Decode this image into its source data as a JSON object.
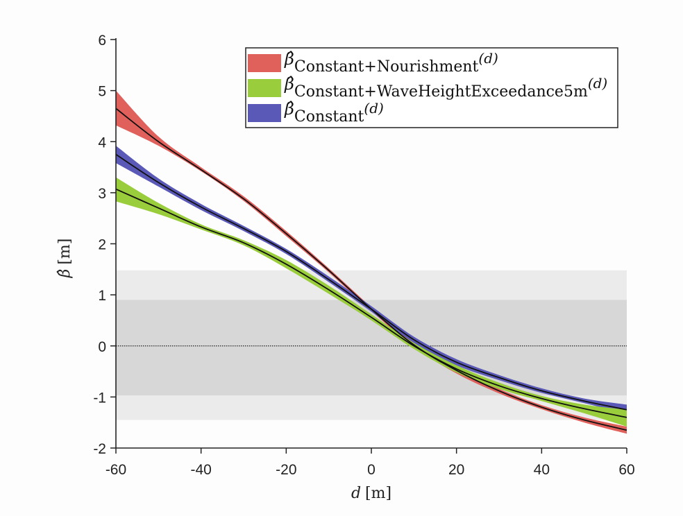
{
  "chart_data": {
    "type": "line",
    "title": "",
    "xlabel": "d [m]",
    "ylabel": "β̂ [m]",
    "xlim": [
      -60,
      60
    ],
    "ylim": [
      -2,
      6
    ],
    "xticks": [
      -60,
      -40,
      -20,
      0,
      20,
      40,
      60
    ],
    "yticks": [
      -2,
      -1,
      0,
      1,
      2,
      3,
      4,
      5,
      6
    ],
    "x": [
      -60,
      -50,
      -40,
      -30,
      -20,
      -10,
      0,
      10,
      20,
      30,
      40,
      50,
      60
    ],
    "bands": [
      {
        "name": "outer-band",
        "y0": -1.45,
        "y1": 1.48,
        "color": "#ebebeb"
      },
      {
        "name": "inner-band",
        "y0": -0.97,
        "y1": 0.9,
        "color": "#d8d7d8"
      }
    ],
    "zero_line": {
      "y": 0,
      "style": "dotted",
      "color": "#222222"
    },
    "series": [
      {
        "name": "Constant+Nourishment",
        "legend_sub": "Constant+Nourishment",
        "color": "#e0605c",
        "values": [
          4.65,
          4.0,
          3.45,
          2.88,
          2.2,
          1.48,
          0.72,
          0.02,
          -0.48,
          -0.88,
          -1.2,
          -1.45,
          -1.65
        ],
        "lower": [
          4.32,
          3.92,
          3.42,
          2.84,
          2.15,
          1.44,
          0.68,
          -0.02,
          -0.54,
          -0.93,
          -1.24,
          -1.5,
          -1.72
        ],
        "upper": [
          5.0,
          4.1,
          3.5,
          2.93,
          2.25,
          1.52,
          0.76,
          0.06,
          -0.43,
          -0.84,
          -1.16,
          -1.4,
          -1.58
        ]
      },
      {
        "name": "Constant+WaveHeightExceedance5m",
        "legend_sub": "Constant+WaveHeightExceedance5m",
        "color": "#9acd3c",
        "values": [
          3.07,
          2.7,
          2.33,
          2.02,
          1.6,
          1.1,
          0.56,
          0.0,
          -0.45,
          -0.78,
          -1.03,
          -1.23,
          -1.4
        ],
        "lower": [
          2.83,
          2.58,
          2.28,
          1.97,
          1.52,
          1.02,
          0.5,
          -0.06,
          -0.52,
          -0.84,
          -1.08,
          -1.32,
          -1.58
        ],
        "upper": [
          3.3,
          2.8,
          2.38,
          2.07,
          1.68,
          1.18,
          0.62,
          0.06,
          -0.38,
          -0.72,
          -0.98,
          -1.15,
          -1.25
        ]
      },
      {
        "name": "Constant",
        "legend_sub": "Constant",
        "color": "#5a59b8",
        "values": [
          3.75,
          3.2,
          2.72,
          2.3,
          1.85,
          1.3,
          0.72,
          0.12,
          -0.32,
          -0.62,
          -0.88,
          -1.08,
          -1.25
        ],
        "lower": [
          3.58,
          3.12,
          2.66,
          2.25,
          1.8,
          1.25,
          0.67,
          0.06,
          -0.38,
          -0.67,
          -0.92,
          -1.12,
          -1.33
        ],
        "upper": [
          3.92,
          3.28,
          2.78,
          2.35,
          1.9,
          1.36,
          0.78,
          0.18,
          -0.26,
          -0.57,
          -0.83,
          -1.03,
          -1.15
        ]
      }
    ],
    "legend": {
      "placement": "top-right",
      "items": [
        {
          "symbol": "β̂",
          "sub": "Constant+Nourishment",
          "suffix": "(d)",
          "color": "#e0605c"
        },
        {
          "symbol": "β̂",
          "sub": "Constant+WaveHeightExceedance5m",
          "suffix": "(d)",
          "color": "#9acd3c"
        },
        {
          "symbol": "β̂",
          "sub": "Constant",
          "suffix": "(d)",
          "color": "#5a59b8"
        }
      ]
    }
  }
}
